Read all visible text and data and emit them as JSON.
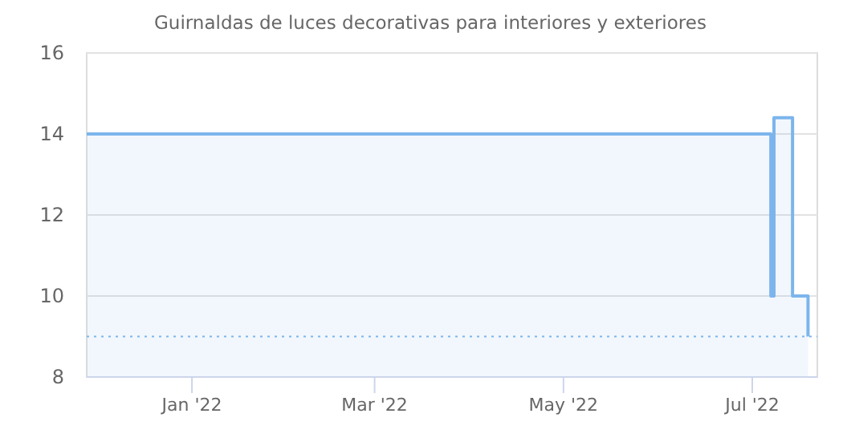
{
  "chart_data": {
    "type": "area",
    "title": "Guirnaldas de luces decorativas para interiores y exteriores",
    "x": [
      "2021-11-28",
      "2022-07-07",
      "2022-07-07",
      "2022-07-08",
      "2022-07-08",
      "2022-07-14",
      "2022-07-14",
      "2022-07-19",
      "2022-07-19"
    ],
    "series": [
      {
        "color": "#7cb5ec",
        "values": [
          14,
          14,
          10,
          10,
          14.4,
          14.4,
          10,
          10,
          9
        ]
      }
    ],
    "xlim": [
      "2021-11-28",
      "2022-07-22"
    ],
    "xticks": [
      {
        "value": "2022-01-01",
        "label": "Jan '22"
      },
      {
        "value": "2022-03-01",
        "label": "Mar '22"
      },
      {
        "value": "2022-05-01",
        "label": "May '22"
      },
      {
        "value": "2022-07-01",
        "label": "Jul '22"
      }
    ],
    "ylim": [
      8,
      16
    ],
    "yticks": [
      8,
      10,
      12,
      14,
      16
    ],
    "grid": "y",
    "ref_lines": [
      {
        "axis": "y",
        "value": 9,
        "color": "#7cb5ec",
        "line_style": "dotted"
      }
    ]
  }
}
